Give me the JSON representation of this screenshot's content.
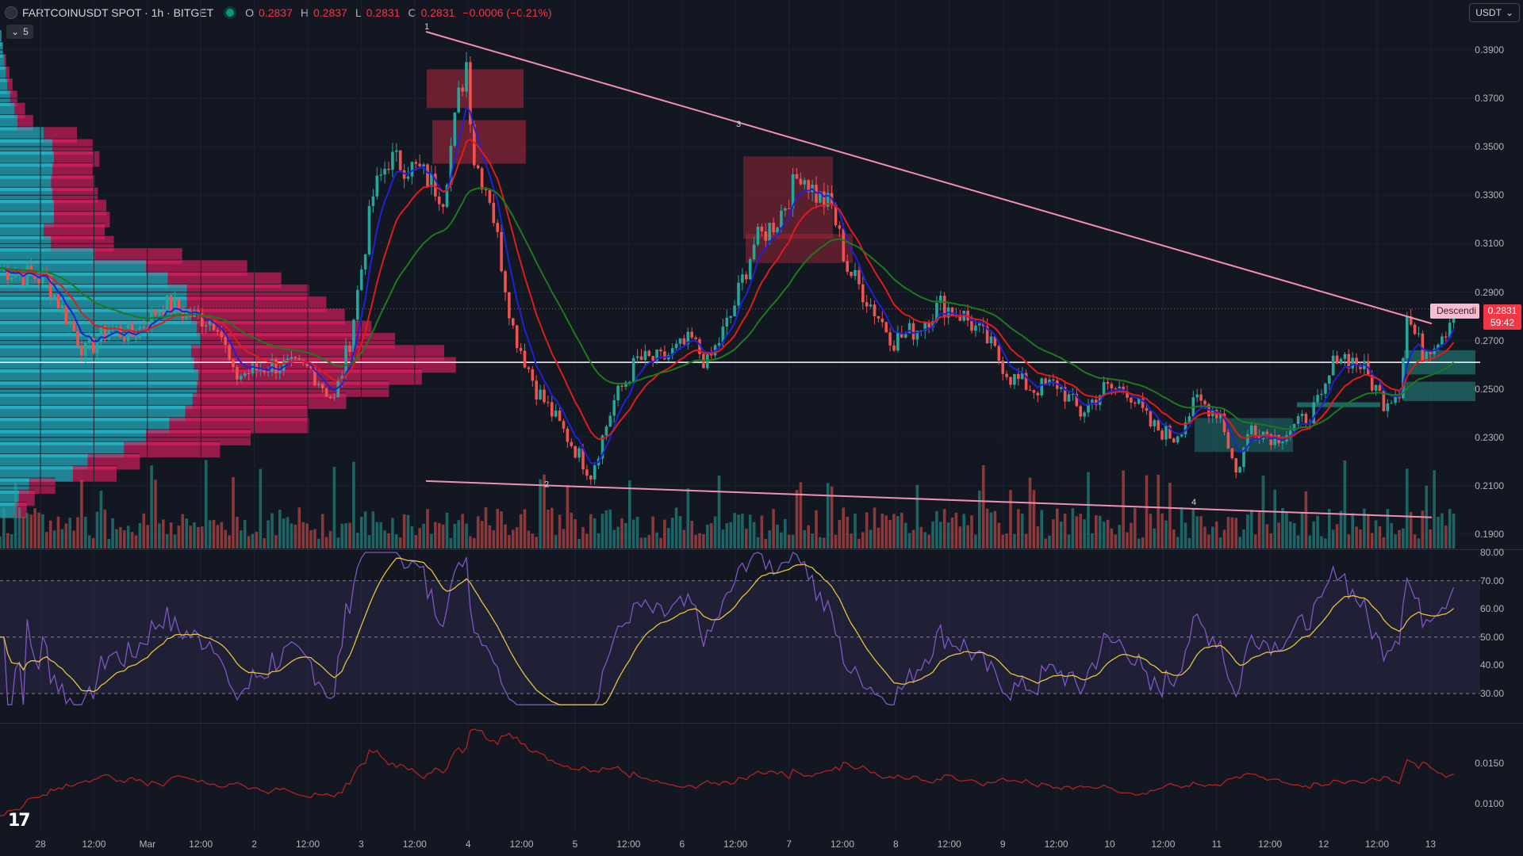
{
  "header": {
    "symbol": "FARTCOINUSDT SPOT · 1h · BITGET",
    "ohlc": [
      {
        "label": "O",
        "value": "0.2837"
      },
      {
        "label": "H",
        "value": "0.2837"
      },
      {
        "label": "L",
        "value": "0.2831"
      },
      {
        "label": "C",
        "value": "0.2831"
      }
    ],
    "change": "−0.0006 (−0.21%)",
    "indicators_toggle": "5",
    "currency": "USDT"
  },
  "colors": {
    "bg": "#131722",
    "up": "#26a69a",
    "down": "#ef5350",
    "trendline": "#f48fb1",
    "ema_fast": "#1e22d6",
    "ema_mid": "#e01b1b",
    "ema_slow": "#1c7a1c",
    "rsi": "#7e57c2",
    "rsi_ma": "#e5c33f",
    "osc": "#b22222"
  },
  "price_axis": [
    "0.3900",
    "0.3700",
    "0.3500",
    "0.3300",
    "0.3100",
    "0.2900",
    "0.2700",
    "0.2500",
    "0.2300",
    "0.2100",
    "0.1900"
  ],
  "last_price": {
    "price": "0.2831",
    "countdown": "59:42",
    "pattern": "Descendi"
  },
  "rsi_axis": [
    "80.00",
    "70.00",
    "60.00",
    "50.00",
    "40.00",
    "30.00"
  ],
  "osc_axis": [
    "0.0150",
    "0.0100"
  ],
  "time_axis": [
    "28",
    "12:00",
    "Mar",
    "12:00",
    "2",
    "12:00",
    "3",
    "12:00",
    "4",
    "12:00",
    "5",
    "12:00",
    "6",
    "12:00",
    "7",
    "12:00",
    "8",
    "12:00",
    "9",
    "12:00",
    "10",
    "12:00",
    "11",
    "12:00",
    "12",
    "12:00",
    "13"
  ],
  "wave_labels": [
    "1",
    "2",
    "3",
    "4"
  ],
  "chart_data": {
    "type": "candlestick",
    "pair": "FARTCOINUSDT",
    "interval": "1h",
    "ylim": [
      0.188,
      0.4
    ],
    "anchors": [
      [
        0,
        0.3
      ],
      [
        12,
        0.295
      ],
      [
        22,
        0.265
      ],
      [
        28,
        0.275
      ],
      [
        34,
        0.272
      ],
      [
        42,
        0.285
      ],
      [
        50,
        0.28
      ],
      [
        56,
        0.278
      ],
      [
        60,
        0.255
      ],
      [
        70,
        0.26
      ],
      [
        80,
        0.258
      ],
      [
        86,
        0.245
      ],
      [
        90,
        0.27
      ],
      [
        96,
        0.33
      ],
      [
        100,
        0.345
      ],
      [
        108,
        0.34
      ],
      [
        114,
        0.33
      ],
      [
        118,
        0.37
      ],
      [
        120,
        0.385
      ],
      [
        122,
        0.345
      ],
      [
        126,
        0.33
      ],
      [
        132,
        0.275
      ],
      [
        138,
        0.25
      ],
      [
        146,
        0.23
      ],
      [
        152,
        0.215
      ],
      [
        158,
        0.245
      ],
      [
        164,
        0.262
      ],
      [
        170,
        0.262
      ],
      [
        178,
        0.27
      ],
      [
        182,
        0.26
      ],
      [
        188,
        0.28
      ],
      [
        194,
        0.31
      ],
      [
        200,
        0.32
      ],
      [
        206,
        0.34
      ],
      [
        210,
        0.33
      ],
      [
        214,
        0.325
      ],
      [
        218,
        0.3
      ],
      [
        224,
        0.285
      ],
      [
        230,
        0.27
      ],
      [
        236,
        0.275
      ],
      [
        242,
        0.285
      ],
      [
        248,
        0.28
      ],
      [
        254,
        0.27
      ],
      [
        260,
        0.255
      ],
      [
        266,
        0.25
      ],
      [
        272,
        0.252
      ],
      [
        278,
        0.24
      ],
      [
        284,
        0.25
      ],
      [
        290,
        0.25
      ],
      [
        296,
        0.235
      ],
      [
        302,
        0.23
      ],
      [
        308,
        0.245
      ],
      [
        314,
        0.24
      ],
      [
        318,
        0.215
      ],
      [
        322,
        0.235
      ],
      [
        328,
        0.23
      ],
      [
        334,
        0.235
      ],
      [
        340,
        0.245
      ],
      [
        344,
        0.265
      ],
      [
        350,
        0.26
      ],
      [
        356,
        0.245
      ],
      [
        360,
        0.25
      ],
      [
        362,
        0.28
      ],
      [
        366,
        0.265
      ],
      [
        372,
        0.275
      ],
      [
        374,
        0.2831
      ]
    ],
    "trendlines": [
      {
        "from": [
          120,
          0.3975
        ],
        "to": [
          374,
          0.277
        ]
      },
      {
        "from": [
          120,
          0.212
        ],
        "to": [
          374,
          0.197
        ]
      }
    ],
    "hline": 0.261
  }
}
